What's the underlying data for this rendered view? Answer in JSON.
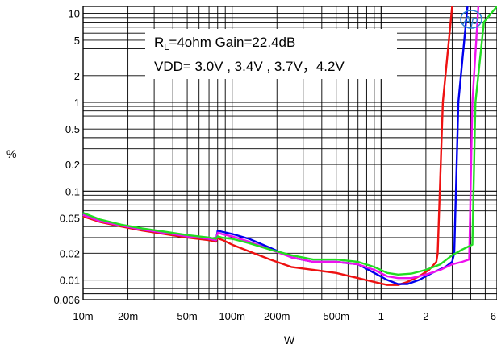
{
  "chart_data": {
    "type": "line",
    "title": "",
    "xlabel": "W",
    "ylabel": "%",
    "xscale": "log",
    "yscale": "log",
    "xlim": [
      0.01,
      6
    ],
    "ylim": [
      0.006,
      12
    ],
    "grid": true,
    "x_ticks": [
      {
        "value": 0.01,
        "label": "10m"
      },
      {
        "value": 0.02,
        "label": "20m"
      },
      {
        "value": 0.05,
        "label": "50m"
      },
      {
        "value": 0.1,
        "label": "100m"
      },
      {
        "value": 0.2,
        "label": "200m"
      },
      {
        "value": 0.5,
        "label": "500m"
      },
      {
        "value": 1,
        "label": "1"
      },
      {
        "value": 2,
        "label": "2"
      },
      {
        "value": 6,
        "label": "6"
      }
    ],
    "y_ticks": [
      {
        "value": 10,
        "label": "10"
      },
      {
        "value": 5,
        "label": "5"
      },
      {
        "value": 2,
        "label": "2"
      },
      {
        "value": 1,
        "label": "1"
      },
      {
        "value": 0.5,
        "label": "0.5"
      },
      {
        "value": 0.2,
        "label": "0.2"
      },
      {
        "value": 0.1,
        "label": "0.1"
      },
      {
        "value": 0.05,
        "label": "0.05"
      },
      {
        "value": 0.02,
        "label": "0.02"
      },
      {
        "value": 0.01,
        "label": "0.01"
      },
      {
        "value": 0.006,
        "label": "0.006"
      }
    ],
    "annotation": {
      "line1_prefix": "R",
      "line1_sub": "L",
      "line1_rest": "=4ohm Gain=22.4dB",
      "line2": "VDD= 3.0V , 3.4V , 3.7V，4.2V"
    },
    "logo_text": "Ap",
    "series": [
      {
        "color": "#ee1111",
        "x": [
          0.01,
          0.013,
          0.018,
          0.025,
          0.035,
          0.05,
          0.07,
          0.078,
          0.08,
          0.082,
          0.087,
          0.1,
          0.13,
          0.18,
          0.25,
          0.35,
          0.5,
          0.7,
          0.9,
          1.1,
          1.3,
          1.5,
          1.8,
          2.1,
          2.35,
          2.4,
          2.6,
          3.0
        ],
        "y": [
          0.052,
          0.045,
          0.04,
          0.036,
          0.033,
          0.03,
          0.028,
          0.027,
          0.03,
          0.029,
          0.028,
          0.025,
          0.021,
          0.017,
          0.014,
          0.013,
          0.012,
          0.0105,
          0.0095,
          0.0088,
          0.0088,
          0.0095,
          0.011,
          0.013,
          0.016,
          0.02,
          1.0,
          12
        ]
      },
      {
        "color": "#0000ee",
        "x": [
          0.01,
          0.013,
          0.018,
          0.025,
          0.035,
          0.05,
          0.07,
          0.078,
          0.08,
          0.085,
          0.1,
          0.13,
          0.18,
          0.25,
          0.35,
          0.5,
          0.7,
          0.9,
          1.1,
          1.3,
          1.5,
          1.8,
          2.2,
          2.7,
          3.0,
          3.1,
          3.3,
          3.8
        ],
        "y": [
          0.055,
          0.047,
          0.041,
          0.037,
          0.034,
          0.031,
          0.029,
          0.028,
          0.036,
          0.035,
          0.033,
          0.029,
          0.023,
          0.018,
          0.016,
          0.016,
          0.015,
          0.012,
          0.01,
          0.009,
          0.009,
          0.01,
          0.012,
          0.014,
          0.016,
          0.02,
          1.0,
          12
        ]
      },
      {
        "color": "#ee11ee",
        "x": [
          0.01,
          0.013,
          0.018,
          0.025,
          0.035,
          0.05,
          0.07,
          0.078,
          0.08,
          0.085,
          0.1,
          0.13,
          0.18,
          0.25,
          0.35,
          0.5,
          0.7,
          0.9,
          1.1,
          1.3,
          1.6,
          2.0,
          2.5,
          3.0,
          3.5,
          3.9,
          4.1,
          4.5
        ],
        "y": [
          0.054,
          0.046,
          0.041,
          0.037,
          0.034,
          0.031,
          0.029,
          0.028,
          0.034,
          0.033,
          0.031,
          0.027,
          0.022,
          0.018,
          0.016,
          0.016,
          0.015,
          0.013,
          0.011,
          0.0105,
          0.0105,
          0.0115,
          0.013,
          0.015,
          0.016,
          0.017,
          1.0,
          12
        ]
      },
      {
        "color": "#22dd22",
        "x": [
          0.01,
          0.013,
          0.018,
          0.025,
          0.035,
          0.05,
          0.07,
          0.078,
          0.08,
          0.085,
          0.1,
          0.13,
          0.18,
          0.25,
          0.35,
          0.5,
          0.7,
          0.9,
          1.1,
          1.3,
          1.6,
          2.0,
          2.5,
          3.0,
          3.5,
          4.1,
          4.3,
          4.9,
          6.0
        ],
        "y": [
          0.057,
          0.048,
          0.042,
          0.038,
          0.035,
          0.032,
          0.03,
          0.029,
          0.031,
          0.03,
          0.029,
          0.026,
          0.022,
          0.019,
          0.017,
          0.017,
          0.016,
          0.014,
          0.012,
          0.0115,
          0.0118,
          0.013,
          0.015,
          0.019,
          0.022,
          0.025,
          1.0,
          8,
          12
        ]
      }
    ]
  }
}
